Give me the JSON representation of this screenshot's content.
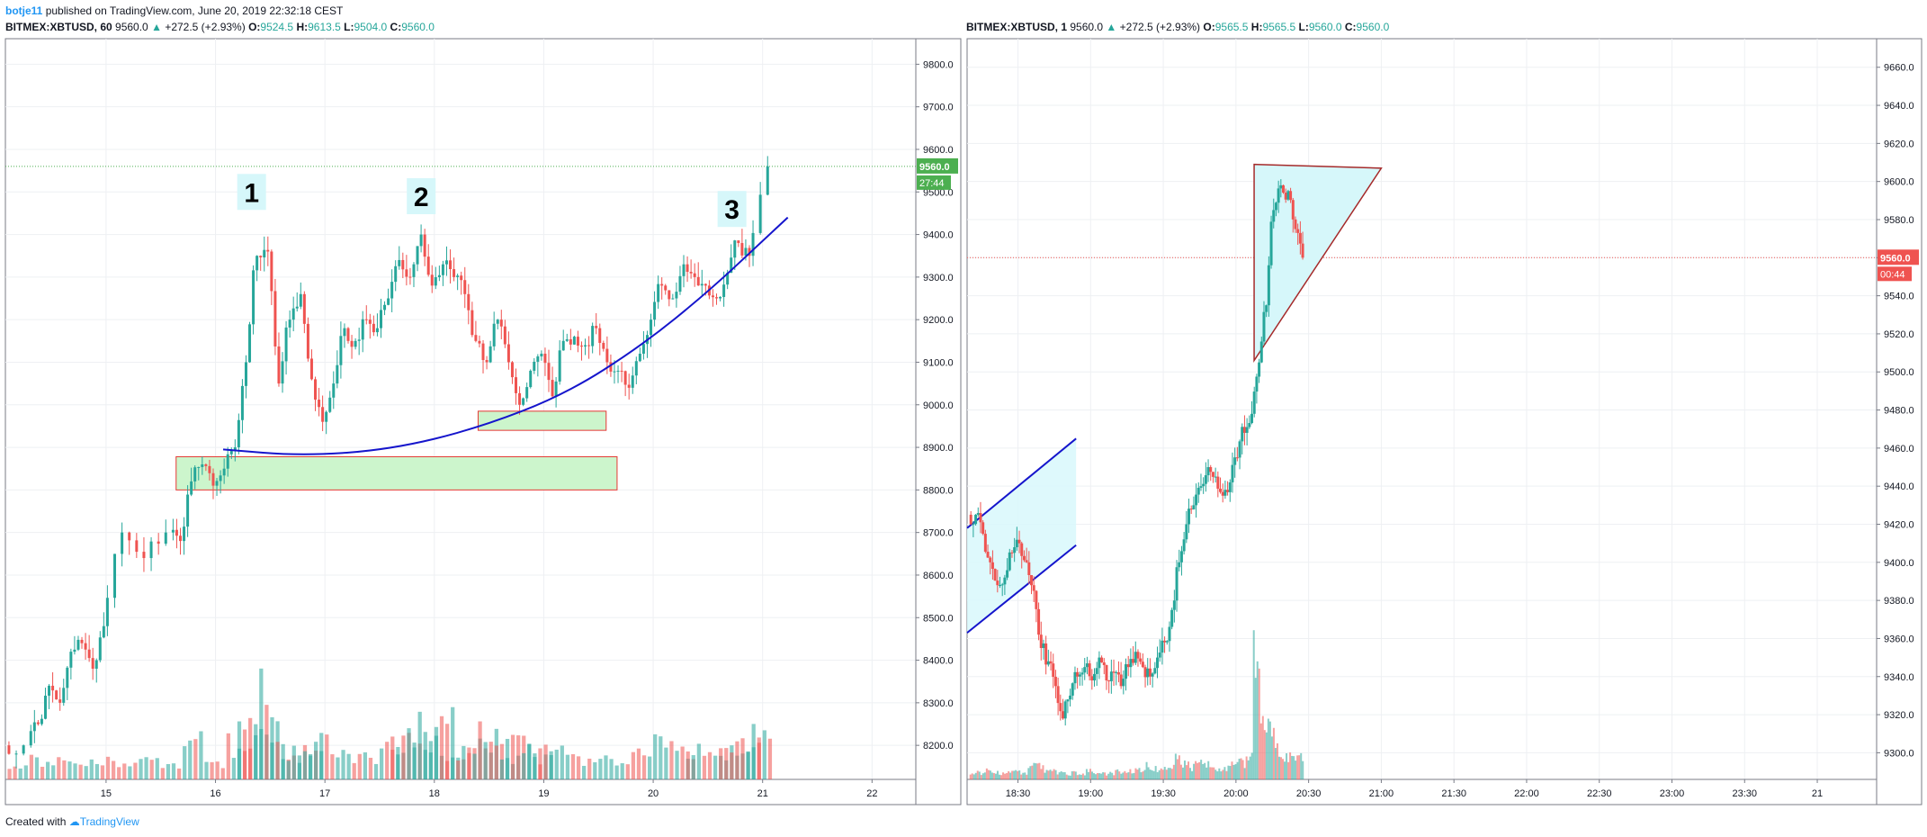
{
  "header": {
    "author": "botje11",
    "published": "published on TradingView.com, June 20, 2019 22:32:18 CEST"
  },
  "footer": {
    "created_with": "Created with",
    "brand": "TradingView"
  },
  "colors": {
    "up": "#26a69a",
    "down": "#ef5350",
    "curve": "#1515cc",
    "zone_fill": "#ccf5cc",
    "zone_stroke": "#e53935",
    "triangle_fill": "#d6f7fa",
    "triangle_stroke": "#a52a2a",
    "last_price_left": "#4caf50",
    "last_price_right": "#ef5350"
  },
  "chart_data": [
    {
      "type": "candlestick",
      "symbol": "BITMEX:XBTUSD, 60",
      "last": "9560.0",
      "change": "+272.5 (+2.93%)",
      "open": "9524.5",
      "high": "9613.5",
      "low": "9504.0",
      "close": "9560.0",
      "ylim": [
        8120,
        9860
      ],
      "yticks": [
        8200,
        8300,
        8400,
        8500,
        8600,
        8700,
        8800,
        8900,
        9000,
        9100,
        9200,
        9300,
        9400,
        9500,
        9600,
        9700,
        9800
      ],
      "x_ticks": [
        {
          "label": "15",
          "t": 15
        },
        {
          "label": "16",
          "t": 16
        },
        {
          "label": "17",
          "t": 17
        },
        {
          "label": "18",
          "t": 18
        },
        {
          "label": "19",
          "t": 19
        },
        {
          "label": "20",
          "t": 20
        },
        {
          "label": "21",
          "t": 21
        },
        {
          "label": "22",
          "t": 22
        }
      ],
      "x_range": [
        14.08,
        22.4
      ],
      "last_price_label": "9560.0",
      "countdown_label": "27:44",
      "series": [
        {
          "t": 14.1,
          "c": 8200
        },
        {
          "t": 14.3,
          "c": 8250
        },
        {
          "t": 14.4,
          "c": 8340
        },
        {
          "t": 14.5,
          "c": 8300
        },
        {
          "t": 14.6,
          "c": 8420
        },
        {
          "t": 14.7,
          "c": 8440
        },
        {
          "t": 14.8,
          "c": 8380
        },
        {
          "t": 14.9,
          "c": 8480
        },
        {
          "t": 15.0,
          "c": 8700
        },
        {
          "t": 15.2,
          "c": 8640
        },
        {
          "t": 15.4,
          "c": 8700
        },
        {
          "t": 15.6,
          "c": 8680
        },
        {
          "t": 15.7,
          "c": 8820
        },
        {
          "t": 15.8,
          "c": 8860
        },
        {
          "t": 15.9,
          "c": 8810
        },
        {
          "t": 16.0,
          "c": 8850
        },
        {
          "t": 16.1,
          "c": 8900
        },
        {
          "t": 16.2,
          "c": 9100
        },
        {
          "t": 16.3,
          "c": 9350
        },
        {
          "t": 16.4,
          "c": 9360
        },
        {
          "t": 16.5,
          "c": 9050
        },
        {
          "t": 16.6,
          "c": 9200
        },
        {
          "t": 16.7,
          "c": 9260
        },
        {
          "t": 16.8,
          "c": 9060
        },
        {
          "t": 16.9,
          "c": 8960
        },
        {
          "t": 17.0,
          "c": 9050
        },
        {
          "t": 17.1,
          "c": 9180
        },
        {
          "t": 17.2,
          "c": 9150
        },
        {
          "t": 17.3,
          "c": 9200
        },
        {
          "t": 17.4,
          "c": 9180
        },
        {
          "t": 17.5,
          "c": 9250
        },
        {
          "t": 17.6,
          "c": 9340
        },
        {
          "t": 17.7,
          "c": 9300
        },
        {
          "t": 17.8,
          "c": 9400
        },
        {
          "t": 17.9,
          "c": 9280
        },
        {
          "t": 18.0,
          "c": 9330
        },
        {
          "t": 18.1,
          "c": 9300
        },
        {
          "t": 18.2,
          "c": 9260
        },
        {
          "t": 18.3,
          "c": 9150
        },
        {
          "t": 18.4,
          "c": 9100
        },
        {
          "t": 18.5,
          "c": 9200
        },
        {
          "t": 18.6,
          "c": 9100
        },
        {
          "t": 18.7,
          "c": 9000
        },
        {
          "t": 18.8,
          "c": 9080
        },
        {
          "t": 18.9,
          "c": 9120
        },
        {
          "t": 19.0,
          "c": 9020
        },
        {
          "t": 19.1,
          "c": 9150
        },
        {
          "t": 19.2,
          "c": 9160
        },
        {
          "t": 19.3,
          "c": 9140
        },
        {
          "t": 19.4,
          "c": 9180
        },
        {
          "t": 19.5,
          "c": 9100
        },
        {
          "t": 19.6,
          "c": 9080
        },
        {
          "t": 19.7,
          "c": 9040
        },
        {
          "t": 19.8,
          "c": 9120
        },
        {
          "t": 19.9,
          "c": 9200
        },
        {
          "t": 20.0,
          "c": 9280
        },
        {
          "t": 20.1,
          "c": 9250
        },
        {
          "t": 20.2,
          "c": 9330
        },
        {
          "t": 20.3,
          "c": 9300
        },
        {
          "t": 20.4,
          "c": 9280
        },
        {
          "t": 20.5,
          "c": 9250
        },
        {
          "t": 20.6,
          "c": 9310
        },
        {
          "t": 20.7,
          "c": 9380
        },
        {
          "t": 20.8,
          "c": 9350
        },
        {
          "t": 20.9,
          "c": 9560
        }
      ],
      "volume": [
        {
          "t": 14.1,
          "v": 0.2
        },
        {
          "t": 14.3,
          "v": 0.22
        },
        {
          "t": 14.5,
          "v": 0.25
        },
        {
          "t": 14.7,
          "v": 0.18
        },
        {
          "t": 14.9,
          "v": 0.2
        },
        {
          "t": 15.1,
          "v": 0.15
        },
        {
          "t": 15.3,
          "v": 0.22
        },
        {
          "t": 15.5,
          "v": 0.18
        },
        {
          "t": 15.7,
          "v": 0.45
        },
        {
          "t": 15.9,
          "v": 0.2
        },
        {
          "t": 16.1,
          "v": 0.4
        },
        {
          "t": 16.2,
          "v": 0.55
        },
        {
          "t": 16.3,
          "v": 0.48
        },
        {
          "t": 16.4,
          "v": 0.95
        },
        {
          "t": 16.5,
          "v": 0.35
        },
        {
          "t": 16.6,
          "v": 0.25
        },
        {
          "t": 16.7,
          "v": 0.3
        },
        {
          "t": 16.8,
          "v": 0.35
        },
        {
          "t": 16.9,
          "v": 0.4
        },
        {
          "t": 17.1,
          "v": 0.3
        },
        {
          "t": 17.3,
          "v": 0.25
        },
        {
          "t": 17.5,
          "v": 0.35
        },
        {
          "t": 17.6,
          "v": 0.45
        },
        {
          "t": 17.7,
          "v": 0.55
        },
        {
          "t": 17.8,
          "v": 0.6
        },
        {
          "t": 17.9,
          "v": 0.4
        },
        {
          "t": 18.0,
          "v": 0.62
        },
        {
          "t": 18.1,
          "v": 0.35
        },
        {
          "t": 18.2,
          "v": 0.3
        },
        {
          "t": 18.3,
          "v": 0.4
        },
        {
          "t": 18.4,
          "v": 0.5
        },
        {
          "t": 18.5,
          "v": 0.38
        },
        {
          "t": 18.6,
          "v": 0.28
        },
        {
          "t": 18.7,
          "v": 0.56
        },
        {
          "t": 18.8,
          "v": 0.4
        },
        {
          "t": 18.9,
          "v": 0.25
        },
        {
          "t": 19.0,
          "v": 0.3
        },
        {
          "t": 19.2,
          "v": 0.22
        },
        {
          "t": 19.4,
          "v": 0.25
        },
        {
          "t": 19.6,
          "v": 0.2
        },
        {
          "t": 19.8,
          "v": 0.3
        },
        {
          "t": 20.0,
          "v": 0.4
        },
        {
          "t": 20.2,
          "v": 0.35
        },
        {
          "t": 20.3,
          "v": 0.42
        },
        {
          "t": 20.5,
          "v": 0.28
        },
        {
          "t": 20.6,
          "v": 0.3
        },
        {
          "t": 20.7,
          "v": 0.38
        },
        {
          "t": 20.8,
          "v": 0.48
        },
        {
          "t": 20.9,
          "v": 0.52
        }
      ],
      "annotations": {
        "labels": [
          {
            "text": "1",
            "t": 16.33,
            "p": 9500
          },
          {
            "text": "2",
            "t": 17.88,
            "p": 9490
          },
          {
            "text": "3",
            "t": 20.72,
            "p": 9460
          }
        ],
        "curve": [
          {
            "t": 16.07,
            "p": 8895
          },
          {
            "t": 16.8,
            "p": 8880
          },
          {
            "t": 17.6,
            "p": 8895
          },
          {
            "t": 18.4,
            "p": 8945
          },
          {
            "t": 19.2,
            "p": 9025
          },
          {
            "t": 19.9,
            "p": 9140
          },
          {
            "t": 20.5,
            "p": 9265
          },
          {
            "t": 21.0,
            "p": 9385
          },
          {
            "t": 21.23,
            "p": 9440
          }
        ],
        "zones": [
          {
            "t0": 15.64,
            "t1": 19.67,
            "p0": 8800,
            "p1": 8878
          },
          {
            "t0": 18.4,
            "t1": 19.57,
            "p0": 8940,
            "p1": 8985
          }
        ]
      }
    },
    {
      "type": "candlestick",
      "symbol": "BITMEX:XBTUSD, 1",
      "last": "9560.0",
      "change": "+272.5 (+2.93%)",
      "open": "9565.5",
      "high": "9565.5",
      "low": "9560.0",
      "close": "9560.0",
      "ylim": [
        9286,
        9675
      ],
      "yticks": [
        9300,
        9320,
        9340,
        9360,
        9380,
        9400,
        9420,
        9440,
        9460,
        9480,
        9500,
        9520,
        9540,
        9560,
        9580,
        9600,
        9620,
        9640,
        9660
      ],
      "x_ticks": [
        {
          "label": "18:30",
          "t": 1110
        },
        {
          "label": "19:00",
          "t": 1140
        },
        {
          "label": "19:30",
          "t": 1170
        },
        {
          "label": "20:00",
          "t": 1200
        },
        {
          "label": "20:30",
          "t": 1230
        },
        {
          "label": "21:00",
          "t": 1260
        },
        {
          "label": "21:30",
          "t": 1290
        },
        {
          "label": "22:00",
          "t": 1320
        },
        {
          "label": "22:30",
          "t": 1350
        },
        {
          "label": "23:00",
          "t": 1380
        },
        {
          "label": "23:30",
          "t": 1410
        },
        {
          "label": "21",
          "t": 1440
        }
      ],
      "x_range": [
        1089,
        1464.5
      ],
      "last_price_label": "9560.0",
      "countdown_label": "00:44",
      "series": [
        {
          "t": 1090,
          "c": 9425
        },
        {
          "t": 1093,
          "c": 9415
        },
        {
          "t": 1096,
          "c": 9400
        },
        {
          "t": 1099,
          "c": 9388
        },
        {
          "t": 1102,
          "c": 9392
        },
        {
          "t": 1105,
          "c": 9405
        },
        {
          "t": 1108,
          "c": 9410
        },
        {
          "t": 1111,
          "c": 9400
        },
        {
          "t": 1114,
          "c": 9385
        },
        {
          "t": 1117,
          "c": 9355
        },
        {
          "t": 1120,
          "c": 9348
        },
        {
          "t": 1123,
          "c": 9335
        },
        {
          "t": 1126,
          "c": 9318
        },
        {
          "t": 1129,
          "c": 9330
        },
        {
          "t": 1132,
          "c": 9340
        },
        {
          "t": 1135,
          "c": 9345
        },
        {
          "t": 1138,
          "c": 9338
        },
        {
          "t": 1141,
          "c": 9350
        },
        {
          "t": 1144,
          "c": 9338
        },
        {
          "t": 1147,
          "c": 9342
        },
        {
          "t": 1150,
          "c": 9335
        },
        {
          "t": 1153,
          "c": 9345
        },
        {
          "t": 1156,
          "c": 9353
        },
        {
          "t": 1159,
          "c": 9345
        },
        {
          "t": 1162,
          "c": 9340
        },
        {
          "t": 1165,
          "c": 9350
        },
        {
          "t": 1168,
          "c": 9358
        },
        {
          "t": 1171,
          "c": 9375
        },
        {
          "t": 1174,
          "c": 9400
        },
        {
          "t": 1177,
          "c": 9420
        },
        {
          "t": 1180,
          "c": 9430
        },
        {
          "t": 1183,
          "c": 9440
        },
        {
          "t": 1186,
          "c": 9450
        },
        {
          "t": 1189,
          "c": 9445
        },
        {
          "t": 1192,
          "c": 9435
        },
        {
          "t": 1195,
          "c": 9442
        },
        {
          "t": 1198,
          "c": 9455
        },
        {
          "t": 1201,
          "c": 9468
        },
        {
          "t": 1204,
          "c": 9478
        },
        {
          "t": 1207,
          "c": 9505
        },
        {
          "t": 1210,
          "c": 9535
        },
        {
          "t": 1213,
          "c": 9585
        },
        {
          "t": 1216,
          "c": 9598
        },
        {
          "t": 1219,
          "c": 9595
        },
        {
          "t": 1222,
          "c": 9575
        },
        {
          "t": 1225,
          "c": 9560
        }
      ],
      "volume": [
        {
          "t": 1090,
          "v": 0.06
        },
        {
          "t": 1093,
          "v": 0.05
        },
        {
          "t": 1096,
          "v": 0.08
        },
        {
          "t": 1099,
          "v": 0.05
        },
        {
          "t": 1102,
          "v": 0.04
        },
        {
          "t": 1105,
          "v": 0.05
        },
        {
          "t": 1108,
          "v": 0.06
        },
        {
          "t": 1111,
          "v": 0.05
        },
        {
          "t": 1114,
          "v": 0.1
        },
        {
          "t": 1117,
          "v": 0.12
        },
        {
          "t": 1120,
          "v": 0.08
        },
        {
          "t": 1123,
          "v": 0.06
        },
        {
          "t": 1126,
          "v": 0.05
        },
        {
          "t": 1129,
          "v": 0.04
        },
        {
          "t": 1132,
          "v": 0.05
        },
        {
          "t": 1135,
          "v": 0.04
        },
        {
          "t": 1138,
          "v": 0.06
        },
        {
          "t": 1141,
          "v": 0.05
        },
        {
          "t": 1144,
          "v": 0.04
        },
        {
          "t": 1147,
          "v": 0.05
        },
        {
          "t": 1150,
          "v": 0.06
        },
        {
          "t": 1153,
          "v": 0.05
        },
        {
          "t": 1156,
          "v": 0.07
        },
        {
          "t": 1159,
          "v": 0.08
        },
        {
          "t": 1162,
          "v": 0.1
        },
        {
          "t": 1165,
          "v": 0.08
        },
        {
          "t": 1168,
          "v": 0.07
        },
        {
          "t": 1171,
          "v": 0.12
        },
        {
          "t": 1174,
          "v": 0.15
        },
        {
          "t": 1177,
          "v": 0.12
        },
        {
          "t": 1180,
          "v": 0.1
        },
        {
          "t": 1183,
          "v": 0.12
        },
        {
          "t": 1186,
          "v": 0.14
        },
        {
          "t": 1189,
          "v": 0.1
        },
        {
          "t": 1192,
          "v": 0.08
        },
        {
          "t": 1195,
          "v": 0.09
        },
        {
          "t": 1198,
          "v": 0.1
        },
        {
          "t": 1201,
          "v": 0.12
        },
        {
          "t": 1204,
          "v": 0.18
        },
        {
          "t": 1207,
          "v": 0.95
        },
        {
          "t": 1210,
          "v": 0.4
        },
        {
          "t": 1213,
          "v": 0.35
        },
        {
          "t": 1216,
          "v": 0.25
        },
        {
          "t": 1219,
          "v": 0.2
        },
        {
          "t": 1222,
          "v": 0.18
        },
        {
          "t": 1225,
          "v": 0.15
        }
      ],
      "annotations": {
        "channel": {
          "upper": [
            {
              "t": 1089,
              "p": 9418
            },
            {
              "t": 1134,
              "p": 9465
            }
          ],
          "lower": [
            {
              "t": 1089,
              "p": 9363
            },
            {
              "t": 1134,
              "p": 9409
            }
          ]
        },
        "triangle": [
          {
            "t": 1207.5,
            "p": 9609
          },
          {
            "t": 1260,
            "p": 9607
          },
          {
            "t": 1207.5,
            "p": 9506
          }
        ]
      }
    }
  ]
}
